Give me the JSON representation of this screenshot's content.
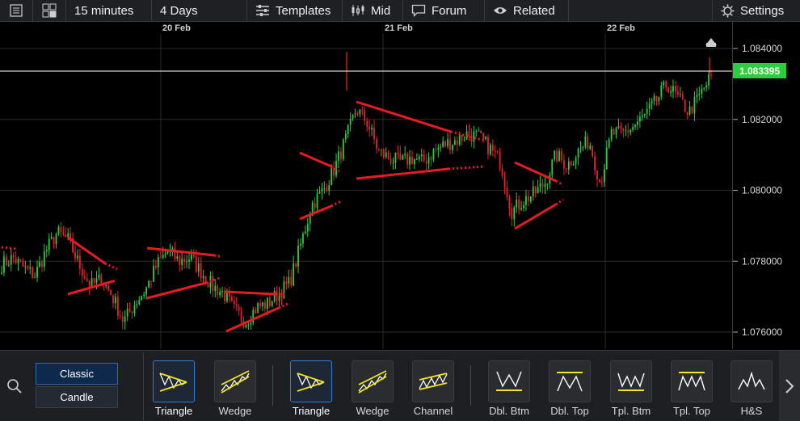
{
  "toolbar": {
    "interval": "15 minutes",
    "range": "4 Days",
    "templates": "Templates",
    "price_type": "Mid",
    "forum": "Forum",
    "related": "Related",
    "settings": "Settings"
  },
  "chart": {
    "current_price": "1.083395",
    "date_labels": [
      "20 Feb",
      "21 Feb",
      "22 Feb"
    ],
    "price_ticks": [
      "1.084000",
      "1.082000",
      "1.080000",
      "1.078000",
      "1.076000"
    ],
    "colors": {
      "up": "#2ecc40",
      "down": "#e8202a",
      "pattern": "#e51c23",
      "price_line": "#cfcfcf",
      "price_tag": "#2ecc40"
    }
  },
  "chart_data": {
    "type": "candlestick",
    "ylim": [
      1.0755,
      1.0853
    ],
    "price_ticks": [
      1.084,
      1.082,
      1.08,
      1.078,
      1.076
    ],
    "current_price": 1.083395,
    "day_separators": [
      "20 Feb",
      "21 Feb",
      "22 Feb"
    ],
    "anchor_closes": [
      1.0779,
      1.0781,
      1.0778,
      1.0776,
      1.0783,
      1.0788,
      1.0786,
      1.0779,
      1.0773,
      1.0775,
      1.077,
      1.0763,
      1.0768,
      1.0772,
      1.0779,
      1.0783,
      1.078,
      1.0781,
      1.0777,
      1.0773,
      1.0771,
      1.0766,
      1.0763,
      1.0767,
      1.0768,
      1.0771,
      1.0774,
      1.0785,
      1.0796,
      1.08,
      1.0806,
      1.0814,
      1.0823,
      1.0819,
      1.0811,
      1.0809,
      1.0808,
      1.0809,
      1.0808,
      1.0811,
      1.0813,
      1.0814,
      1.0816,
      1.0815,
      1.0812,
      1.0808,
      1.0794,
      1.0797,
      1.0799,
      1.0802,
      1.081,
      1.0807,
      1.0811,
      1.0814,
      1.0802,
      1.0816,
      1.0816,
      1.0818,
      1.0821,
      1.0825,
      1.083,
      1.0826,
      1.0822,
      1.0827,
      1.0832
    ]
  },
  "patterns": {
    "style_options": [
      "Classic",
      "Candle"
    ],
    "items": [
      {
        "label": "Triangle",
        "icon": "triangle-pattern-icon",
        "selected": true
      },
      {
        "label": "Wedge",
        "icon": "wedge-pattern-icon",
        "selected": false
      },
      {
        "label": "Triangle",
        "icon": "triangle-pattern-icon",
        "selected": true
      },
      {
        "label": "Wedge",
        "icon": "wedge-pattern-icon",
        "selected": false
      },
      {
        "label": "Channel",
        "icon": "channel-pattern-icon",
        "selected": false
      },
      {
        "label": "Dbl. Btm",
        "icon": "double-bottom-icon",
        "selected": false
      },
      {
        "label": "Dbl. Top",
        "icon": "double-top-icon",
        "selected": false
      },
      {
        "label": "Tpl. Btm",
        "icon": "triple-bottom-icon",
        "selected": false
      },
      {
        "label": "Tpl. Top",
        "icon": "triple-top-icon",
        "selected": false
      },
      {
        "label": "H&S",
        "icon": "head-and-shoulders-icon",
        "selected": false
      }
    ]
  }
}
